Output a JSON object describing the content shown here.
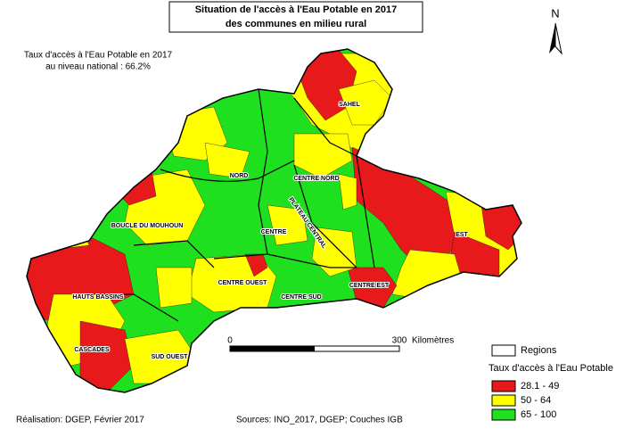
{
  "title": [
    "Situation de l'accès à l'Eau Potable en 2017",
    "des communes en milieu rural"
  ],
  "national_rate": [
    "Taux d'accès à l'Eau Potable en 2017",
    "au niveau national : 66.2%"
  ],
  "north_arrow": "N",
  "scale_bar": {
    "start": "0",
    "end": "300",
    "unit": "Kilomètres"
  },
  "regions": [
    "SAHEL",
    "NORD",
    "CENTRE NORD",
    "BOUCLE DU MOUHOUN",
    "CENTRE",
    "PLATEAU CENTRAL",
    "EST",
    "CENTRE OUEST",
    "CENTRE SUD",
    "CENTRE EST",
    "HAUTS BASSINS",
    "CASCADES",
    "SUD OUEST"
  ],
  "legend": {
    "regions_label": "Regions",
    "title": "Taux d'accès à l'Eau Potable",
    "classes": [
      {
        "label": "28.1 - 49",
        "color": "#e8191b"
      },
      {
        "label": "50 - 64",
        "color": "#ffff00"
      },
      {
        "label": "65 - 100",
        "color": "#1fe01f"
      }
    ]
  },
  "footer": {
    "left": "Réalisation: DGEP, Février 2017",
    "center": "Sources: INO_2017, DGEP; Couches IGB"
  }
}
